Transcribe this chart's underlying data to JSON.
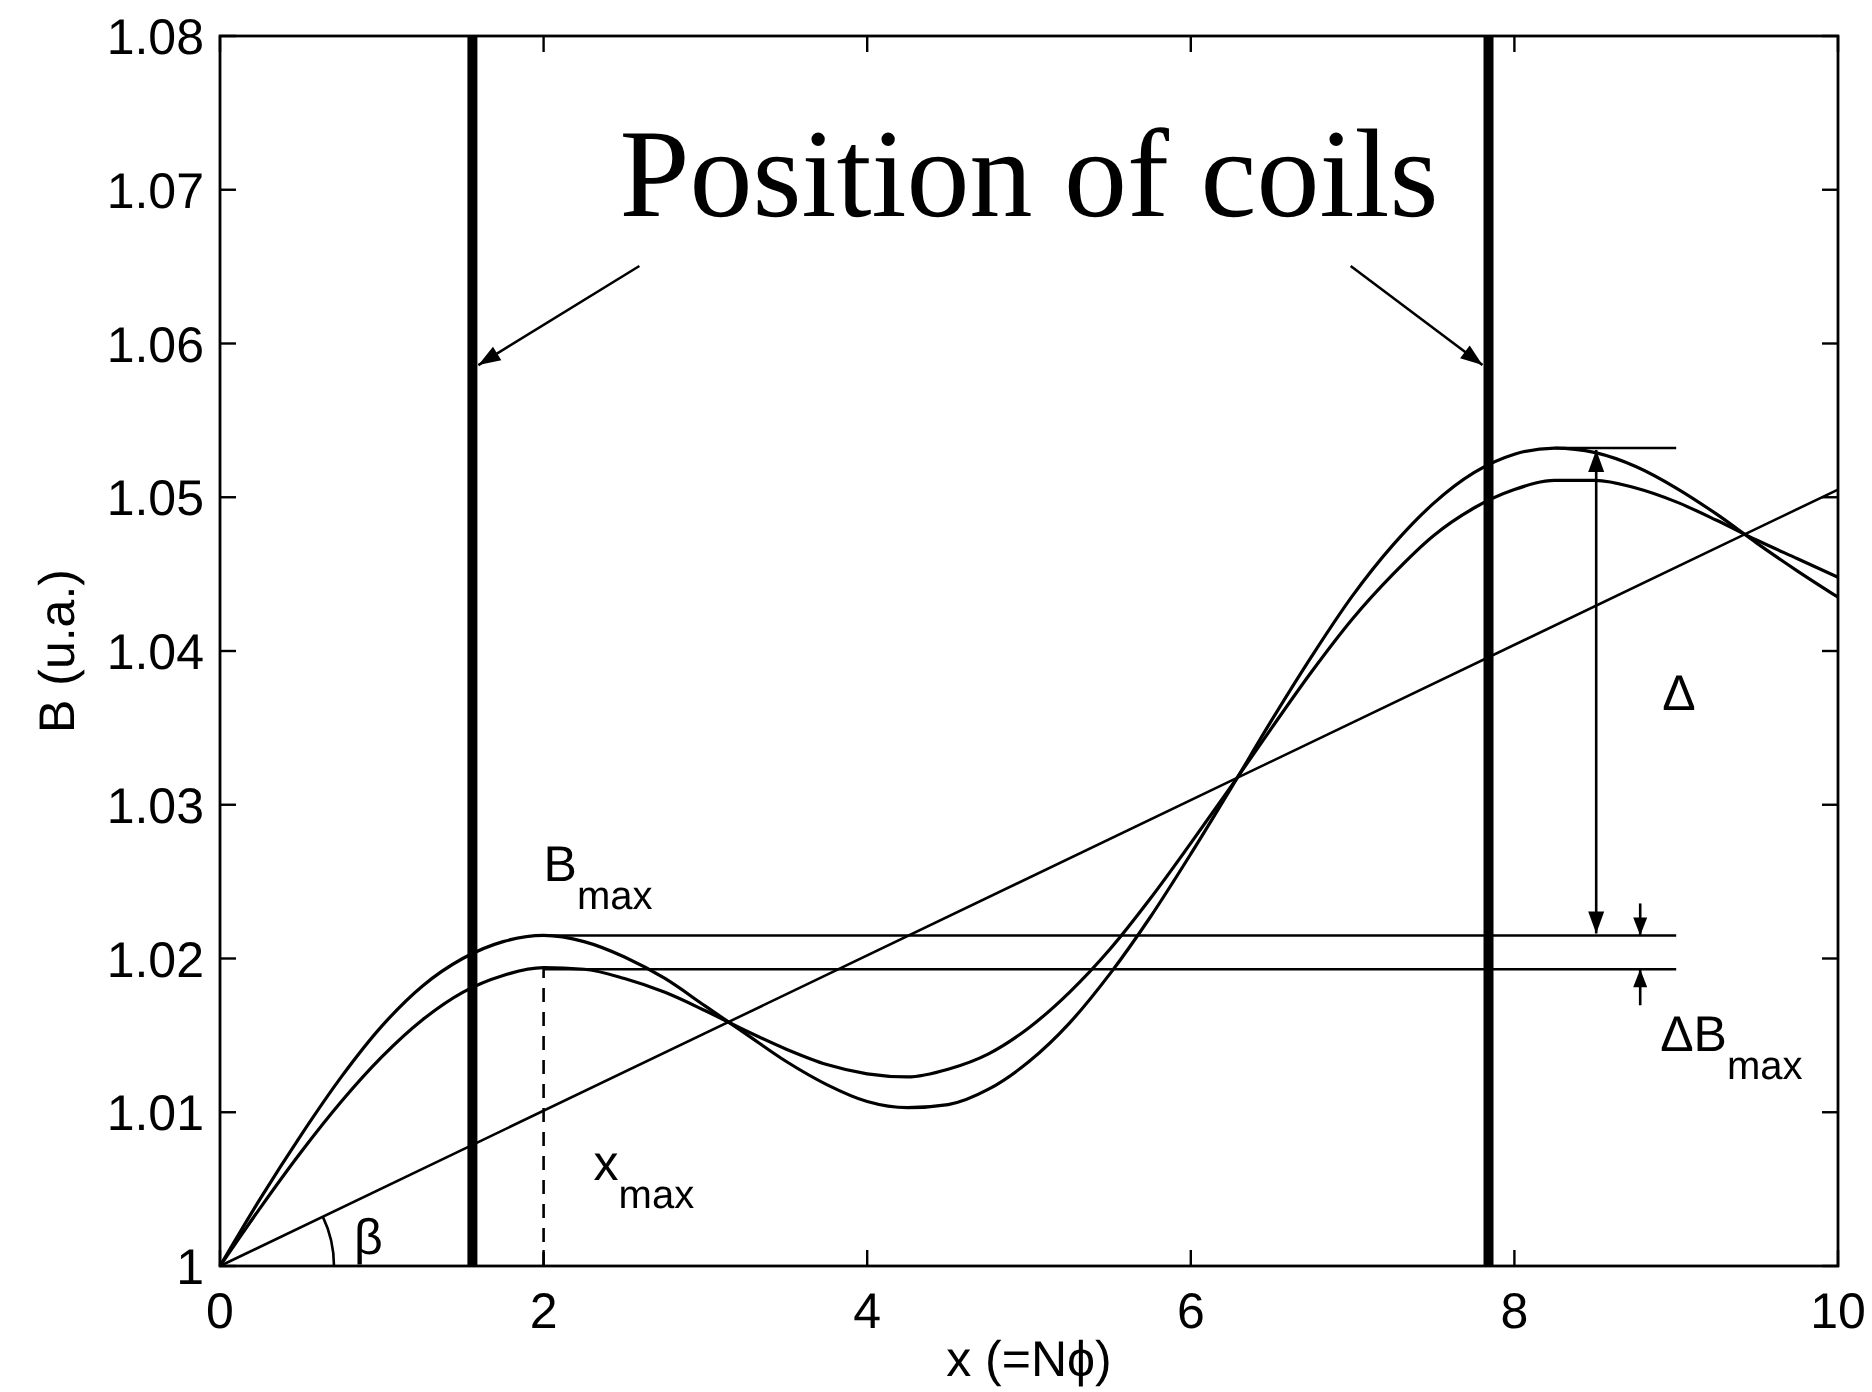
{
  "chart_data": {
    "type": "line",
    "xlabel": "x (=Nϕ)",
    "ylabel": "B (u.a.)",
    "xlim": [
      0,
      10
    ],
    "ylim": [
      1,
      1.08
    ],
    "xticks": [
      0,
      2,
      4,
      6,
      8,
      10
    ],
    "yticks": [
      1,
      1.01,
      1.02,
      1.03,
      1.04,
      1.05,
      1.06,
      1.07,
      1.08
    ],
    "series": [
      {
        "color": "#000000",
        "x": [
          0,
          0.25,
          0.5,
          0.75,
          1,
          1.25,
          1.5,
          1.75,
          2,
          2.25,
          2.5,
          2.75,
          3,
          3.25,
          3.5,
          3.75,
          4,
          4.25,
          4.5,
          4.75,
          5,
          5.25,
          5.5,
          5.75,
          6,
          6.25,
          6.5,
          6.75,
          7,
          7.25,
          7.5,
          7.75,
          8,
          8.25,
          8.5,
          8.75,
          9,
          9.25,
          9.5,
          9.75,
          10
        ],
        "values": [
          1,
          1.0044,
          1.0085,
          1.0123,
          1.0156,
          1.0182,
          1.02,
          1.0211,
          1.0215,
          1.0211,
          1.0201,
          1.0187,
          1.0169,
          1.0151,
          1.0133,
          1.0118,
          1.0107,
          1.0103,
          1.0105,
          1.0115,
          1.0133,
          1.0158,
          1.019,
          1.0227,
          1.0268,
          1.0311,
          1.0355,
          1.0397,
          1.0436,
          1.0469,
          1.0496,
          1.0516,
          1.0528,
          1.0532,
          1.0529,
          1.052,
          1.0506,
          1.0489,
          1.047,
          1.0452,
          1.0435
        ]
      },
      {
        "color": "#000000",
        "x": [
          0,
          0.25,
          0.5,
          0.75,
          1,
          1.25,
          1.5,
          1.75,
          2,
          2.25,
          2.5,
          2.75,
          3,
          3.25,
          3.5,
          3.75,
          4,
          4.25,
          4.5,
          4.75,
          5,
          5.25,
          5.5,
          5.75,
          6,
          6.25,
          6.5,
          6.75,
          7,
          7.25,
          7.5,
          7.75,
          8,
          8.25,
          8.5,
          8.75,
          9,
          9.25,
          9.5,
          9.75,
          10
        ],
        "values": [
          1,
          1.0038,
          1.0074,
          1.0107,
          1.0136,
          1.016,
          1.0178,
          1.0189,
          1.0194,
          1.0193,
          1.0187,
          1.0178,
          1.0166,
          1.0153,
          1.0141,
          1.0131,
          1.0125,
          1.0123,
          1.0128,
          1.0138,
          1.0155,
          1.0178,
          1.0206,
          1.0239,
          1.0275,
          1.0312,
          1.035,
          1.0387,
          1.0421,
          1.045,
          1.0475,
          1.0493,
          1.0505,
          1.0511,
          1.0511,
          1.0506,
          1.0497,
          1.0485,
          1.0472,
          1.046,
          1.0448
        ]
      },
      {
        "color": "#000000",
        "x": [
          0,
          10
        ],
        "values": [
          1,
          1.0505
        ]
      },
      {
        "color": "#000000",
        "x": [
          2,
          9
        ],
        "values": [
          1.0215,
          1.0215
        ]
      },
      {
        "color": "#000000",
        "x": [
          2,
          9
        ],
        "values": [
          1.0193,
          1.0193
        ]
      },
      {
        "color": "#000000",
        "x": [
          8.25,
          9
        ],
        "values": [
          1.0532,
          1.0532
        ]
      }
    ],
    "ref_lines": [
      {
        "axis": "x",
        "value": 1.56,
        "color": "#000000"
      },
      {
        "axis": "x",
        "value": 7.84,
        "color": "#000000"
      },
      {
        "axis": "x",
        "value": 2,
        "color": "#000000",
        "line_style": "dashed",
        "label": "x$_{max}$"
      }
    ],
    "annotations": [
      {
        "text": "Position of coils",
        "x": 1.56,
        "y": 1.0586
      },
      {
        "text": "B$_{max}$",
        "x": 2,
        "y": 1.0215
      },
      "Δ",
      "ΔB$_{max}$",
      {
        "text": "β",
        "x": 0,
        "y": 1
      }
    ]
  }
}
